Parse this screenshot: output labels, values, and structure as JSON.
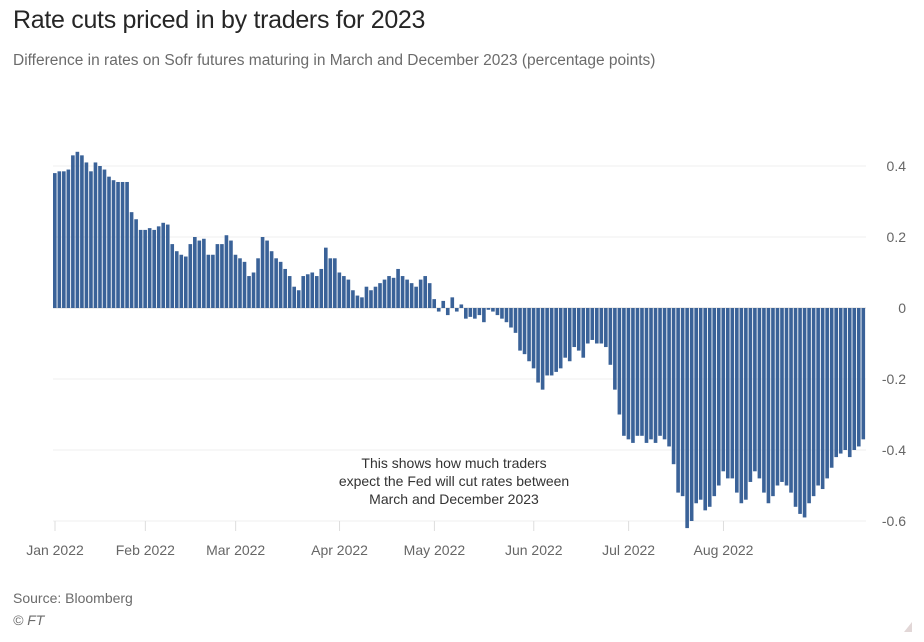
{
  "chart_data": {
    "type": "bar",
    "title": "Rate cuts priced in by traders for 2023",
    "subtitle": "Difference in rates on Sofr futures maturing in March and December 2023 (percentage points)",
    "xlabel": "",
    "ylabel": "",
    "ylim": [
      -0.6,
      0.45
    ],
    "yticks": [
      0.4,
      0.2,
      0,
      -0.2,
      -0.4,
      -0.6
    ],
    "ytick_labels": [
      "0.4",
      "0.2",
      "0",
      "-0.2",
      "-0.4",
      "-0.6"
    ],
    "y_axis_position": "right",
    "grid": true,
    "x_ticks": [
      {
        "label": "Jan 2022",
        "index": 0
      },
      {
        "label": "Feb 2022",
        "index": 20
      },
      {
        "label": "Mar 2022",
        "index": 40
      },
      {
        "label": "Apr 2022",
        "index": 63
      },
      {
        "label": "May 2022",
        "index": 84
      },
      {
        "label": "Jun 2022",
        "index": 106
      },
      {
        "label": "Jul 2022",
        "index": 127
      },
      {
        "label": "Aug 2022",
        "index": 148
      }
    ],
    "x_start": "2022-01-03",
    "x_frequency": "business-day",
    "values": [
      0.38,
      0.385,
      0.385,
      0.39,
      0.43,
      0.44,
      0.43,
      0.41,
      0.385,
      0.41,
      0.4,
      0.39,
      0.37,
      0.36,
      0.355,
      0.355,
      0.355,
      0.27,
      0.25,
      0.22,
      0.22,
      0.225,
      0.22,
      0.23,
      0.24,
      0.235,
      0.18,
      0.16,
      0.15,
      0.145,
      0.18,
      0.2,
      0.19,
      0.195,
      0.15,
      0.15,
      0.18,
      0.18,
      0.205,
      0.19,
      0.15,
      0.14,
      0.13,
      0.09,
      0.1,
      0.14,
      0.2,
      0.19,
      0.16,
      0.14,
      0.13,
      0.11,
      0.09,
      0.06,
      0.05,
      0.09,
      0.095,
      0.1,
      0.09,
      0.11,
      0.17,
      0.14,
      0.14,
      0.1,
      0.09,
      0.08,
      0.05,
      0.035,
      0.03,
      0.06,
      0.05,
      0.06,
      0.07,
      0.08,
      0.09,
      0.085,
      0.11,
      0.09,
      0.08,
      0.07,
      0.06,
      0.08,
      0.09,
      0.07,
      0.025,
      -0.01,
      0.02,
      -0.02,
      0.03,
      -0.01,
      0.01,
      -0.03,
      -0.025,
      -0.03,
      -0.02,
      -0.04,
      -0.005,
      -0.01,
      -0.02,
      -0.03,
      -0.04,
      -0.055,
      -0.07,
      -0.12,
      -0.13,
      -0.15,
      -0.17,
      -0.21,
      -0.23,
      -0.19,
      -0.19,
      -0.18,
      -0.17,
      -0.14,
      -0.15,
      -0.11,
      -0.12,
      -0.14,
      -0.1,
      -0.09,
      -0.1,
      -0.1,
      -0.11,
      -0.16,
      -0.23,
      -0.3,
      -0.36,
      -0.37,
      -0.38,
      -0.36,
      -0.36,
      -0.38,
      -0.37,
      -0.38,
      -0.36,
      -0.37,
      -0.39,
      -0.44,
      -0.52,
      -0.53,
      -0.62,
      -0.6,
      -0.55,
      -0.54,
      -0.57,
      -0.56,
      -0.53,
      -0.5,
      -0.46,
      -0.48,
      -0.48,
      -0.52,
      -0.55,
      -0.54,
      -0.49,
      -0.46,
      -0.48,
      -0.52,
      -0.55,
      -0.53,
      -0.5,
      -0.49,
      -0.5,
      -0.52,
      -0.56,
      -0.58,
      -0.59,
      -0.55,
      -0.53,
      -0.5,
      -0.51,
      -0.48,
      -0.45,
      -0.42,
      -0.41,
      -0.4,
      -0.42,
      -0.4,
      -0.39,
      -0.37
    ],
    "annotation": [
      "This shows how much traders",
      "expect the Fed will cut rates between",
      "March and December 2023"
    ],
    "bar_color": "#3a6298",
    "legend": "none"
  },
  "footer": {
    "source": "Source: Bloomberg",
    "copyright": "© FT"
  }
}
